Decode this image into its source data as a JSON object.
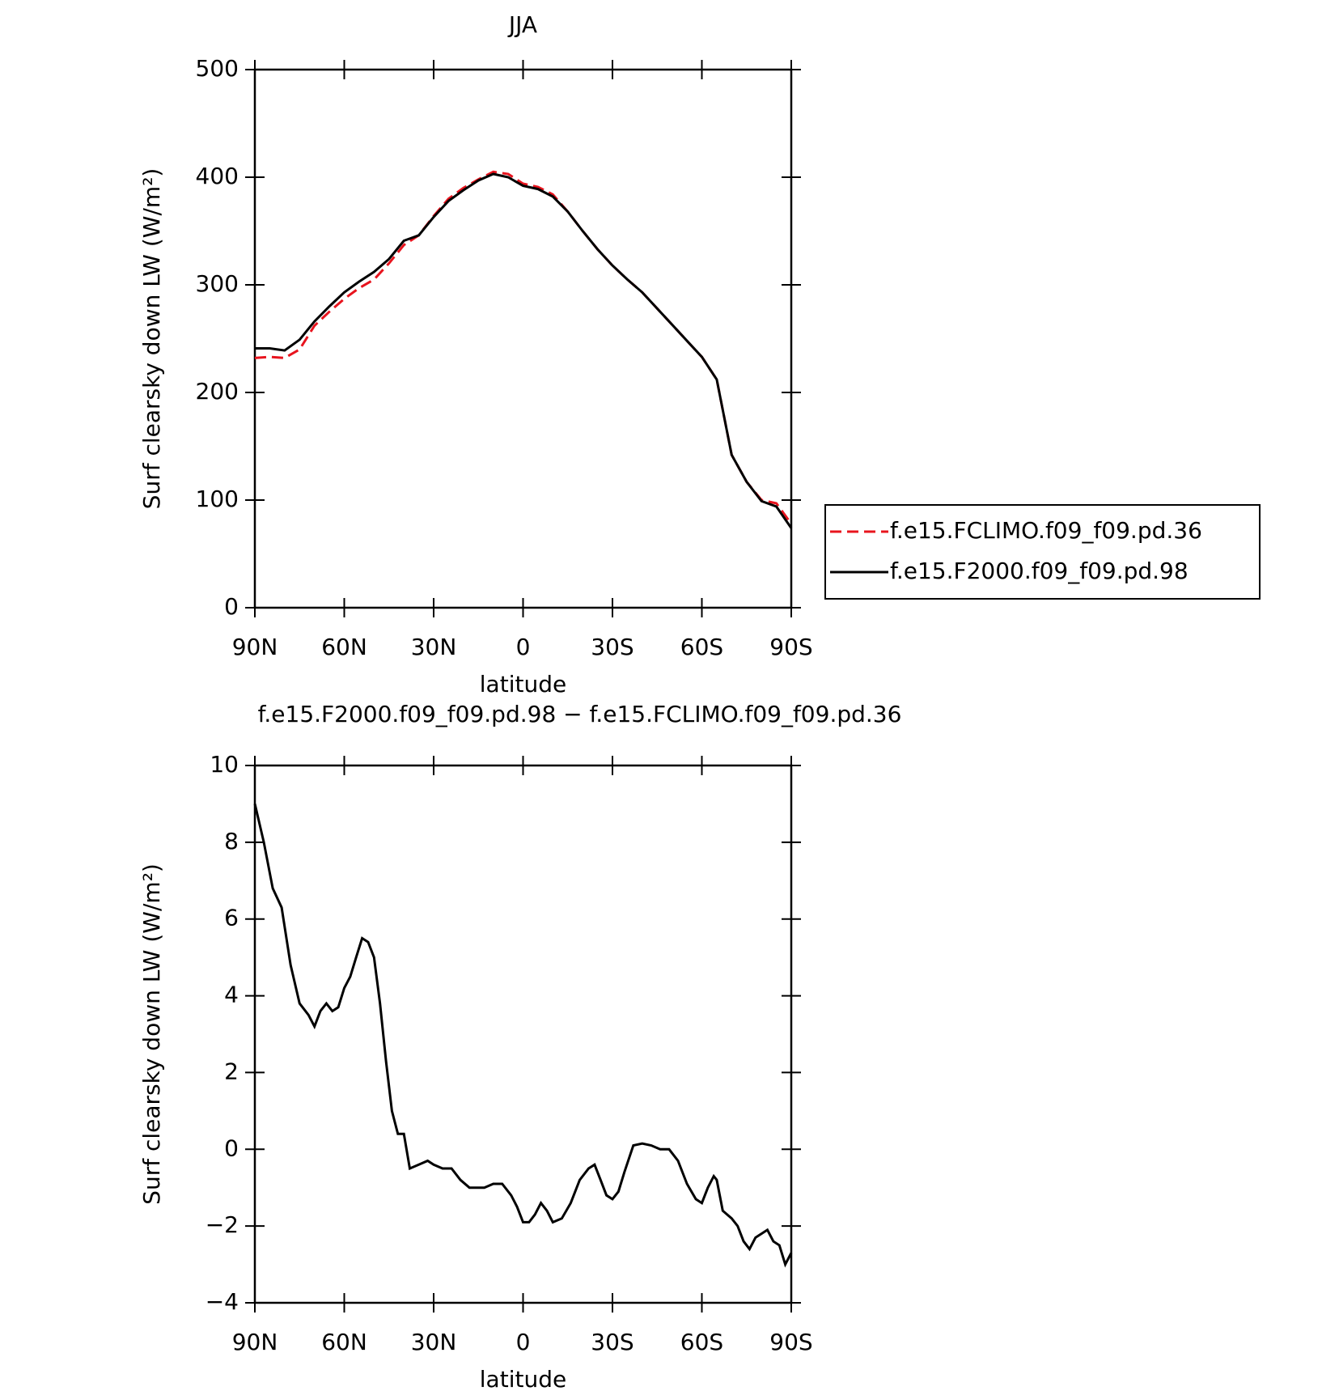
{
  "chart_data": [
    {
      "type": "line",
      "title": "JJA",
      "xlabel": "latitude",
      "ylabel": "Surf clearsky down LW (W/m²)",
      "x": [
        90,
        85,
        80,
        75,
        70,
        65,
        60,
        55,
        50,
        45,
        40,
        35,
        30,
        25,
        20,
        15,
        10,
        5,
        0,
        -5,
        -10,
        -15,
        -20,
        -25,
        -30,
        -35,
        -40,
        -45,
        -50,
        -55,
        -60,
        -65,
        -70,
        -75,
        -80,
        -85,
        -90
      ],
      "series": [
        {
          "name": "f.e15.FCLIMO.f09_f09.pd.36",
          "color": "#e8141e",
          "line_style": "dashed",
          "values": [
            232,
            233,
            232,
            240,
            262,
            275,
            287,
            297,
            305,
            320,
            337,
            346,
            364,
            380,
            390,
            398,
            405,
            403,
            394,
            391,
            384,
            368,
            350,
            333,
            318,
            305,
            293,
            278,
            263,
            248,
            233,
            212,
            142,
            117,
            100,
            97,
            78
          ]
        },
        {
          "name": "f.e15.F2000.f09_f09.pd.98",
          "color": "#000000",
          "line_style": "solid",
          "values": [
            241,
            241,
            239,
            249,
            266,
            280,
            293,
            303,
            312,
            324,
            341,
            346,
            363,
            378,
            388,
            397,
            403,
            400,
            392,
            389,
            382,
            368,
            350,
            333,
            318,
            305,
            293,
            278,
            263,
            248,
            233,
            212,
            142,
            117,
            99,
            94,
            74
          ]
        }
      ],
      "xlim": [
        90,
        -90
      ],
      "xticks": [
        {
          "value": 90,
          "label": "90N"
        },
        {
          "value": 60,
          "label": "60N"
        },
        {
          "value": 30,
          "label": "30N"
        },
        0,
        {
          "value": -30,
          "label": "30S"
        },
        {
          "value": -60,
          "label": "60S"
        },
        {
          "value": -90,
          "label": "90S"
        }
      ],
      "ylim": [
        0,
        500
      ],
      "yticks": [
        0,
        100,
        200,
        300,
        400,
        500
      ],
      "legend": "right"
    },
    {
      "type": "line",
      "title": "f.e15.F2000.f09_f09.pd.98 − f.e15.FCLIMO.f09_f09.pd.36",
      "xlabel": "latitude",
      "ylabel": "Surf clearsky down LW (W/m²)",
      "x": [
        90,
        87,
        84,
        81,
        78,
        75,
        72,
        70,
        68,
        66,
        64,
        62,
        60,
        58,
        56,
        54,
        52,
        50,
        48,
        46,
        44,
        42,
        40,
        38,
        35,
        32,
        30,
        27,
        24,
        21,
        18,
        15,
        13,
        10,
        7,
        4,
        2,
        0,
        -2,
        -4,
        -6,
        -8,
        -10,
        -13,
        -16,
        -19,
        -22,
        -24,
        -26,
        -28,
        -30,
        -32,
        -34,
        -37,
        -40,
        -43,
        -46,
        -49,
        -52,
        -55,
        -58,
        -60,
        -62,
        -64,
        -65,
        -67,
        -70,
        -72,
        -74,
        -76,
        -78,
        -80,
        -82,
        -84,
        -86,
        -88,
        -90
      ],
      "series": [
        {
          "name": "f.e15.F2000.f09_f09.pd.98",
          "color": "#000000",
          "line_style": "solid",
          "values": [
            9,
            8,
            6.8,
            6.3,
            4.8,
            3.8,
            3.5,
            3.2,
            3.6,
            3.8,
            3.6,
            3.7,
            4.2,
            4.5,
            5.0,
            5.5,
            5.4,
            5.0,
            3.8,
            2.3,
            1.0,
            0.4,
            0.4,
            -0.5,
            -0.4,
            -0.3,
            -0.4,
            -0.5,
            -0.5,
            -0.8,
            -1.0,
            -1.0,
            -1.0,
            -0.9,
            -0.9,
            -1.2,
            -1.5,
            -1.9,
            -1.9,
            -1.7,
            -1.4,
            -1.6,
            -1.9,
            -1.8,
            -1.4,
            -0.8,
            -0.5,
            -0.4,
            -0.8,
            -1.2,
            -1.3,
            -1.1,
            -0.6,
            0.1,
            0.15,
            0.1,
            0.0,
            0.0,
            -0.3,
            -0.9,
            -1.3,
            -1.4,
            -1.0,
            -0.7,
            -0.8,
            -1.6,
            -1.8,
            -2.0,
            -2.4,
            -2.6,
            -2.3,
            -2.2,
            -2.1,
            -2.4,
            -2.5,
            -3.0,
            -2.7
          ]
        }
      ],
      "xlim": [
        90,
        -90
      ],
      "xticks": [
        {
          "value": 90,
          "label": "90N"
        },
        {
          "value": 60,
          "label": "60N"
        },
        {
          "value": 30,
          "label": "30N"
        },
        0,
        {
          "value": -30,
          "label": "30S"
        },
        {
          "value": -60,
          "label": "60S"
        },
        {
          "value": -90,
          "label": "90S"
        }
      ],
      "ylim": [
        -4,
        10
      ],
      "yticks": [
        {
          "value": -4,
          "label": "−4"
        },
        {
          "value": -2,
          "label": "−2"
        },
        0,
        2,
        4,
        6,
        8,
        10
      ]
    }
  ]
}
